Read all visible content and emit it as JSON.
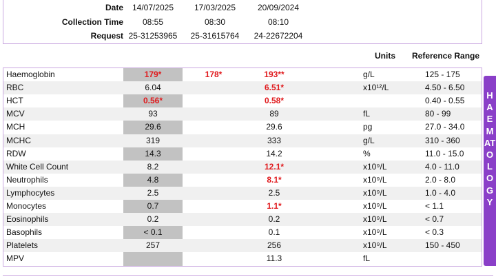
{
  "header": {
    "date_label": "Date",
    "time_label": "Collection Time",
    "request_label": "Request",
    "columns": [
      {
        "date": "14/07/2025",
        "time": "08:55",
        "request": "25-31253965"
      },
      {
        "date": "17/03/2025",
        "time": "08:30",
        "request": "25-31615764"
      },
      {
        "date": "20/09/2024",
        "time": "08:10",
        "request": "24-22672204"
      }
    ]
  },
  "table": {
    "units_header": "Units",
    "ref_header": "Reference Range",
    "rows": [
      {
        "name": "Haemoglobin",
        "v1": "179*",
        "v1_flag": true,
        "v2": "178*",
        "v2_flag": true,
        "v3": "193**",
        "v3_flag": true,
        "unit": "g/L",
        "ref": "125 - 175"
      },
      {
        "name": "RBC",
        "v1": "6.04",
        "v2": "",
        "v3": "6.51*",
        "v3_flag": true,
        "unit": "x10¹²/L",
        "ref": "4.50 - 6.50"
      },
      {
        "name": "HCT",
        "v1": "0.56*",
        "v1_flag": true,
        "v2": "",
        "v3": "0.58*",
        "v3_flag": true,
        "unit": "",
        "ref": "0.40 - 0.55"
      },
      {
        "name": "MCV",
        "v1": "93",
        "v2": "",
        "v3": "89",
        "unit": "fL",
        "ref": "80 - 99"
      },
      {
        "name": "MCH",
        "v1": "29.6",
        "v2": "",
        "v3": "29.6",
        "unit": "pg",
        "ref": "27.0 - 34.0"
      },
      {
        "name": "MCHC",
        "v1": "319",
        "v2": "",
        "v3": "333",
        "unit": "g/L",
        "ref": "310 - 360"
      },
      {
        "name": "RDW",
        "v1": "14.3",
        "v2": "",
        "v3": "14.2",
        "unit": "%",
        "ref": "11.0 - 15.0"
      },
      {
        "name": "White Cell Count",
        "v1": "8.2",
        "v2": "",
        "v3": "12.1*",
        "v3_flag": true,
        "unit": "x10⁹/L",
        "ref": "4.0 - 11.0"
      },
      {
        "name": "Neutrophils",
        "v1": "4.8",
        "v2": "",
        "v3": "8.1*",
        "v3_flag": true,
        "unit": "x10⁹/L",
        "ref": "2.0 - 8.0"
      },
      {
        "name": "Lymphocytes",
        "v1": "2.5",
        "v2": "",
        "v3": "2.5",
        "unit": "x10⁹/L",
        "ref": "1.0 - 4.0"
      },
      {
        "name": "Monocytes",
        "v1": "0.7",
        "v2": "",
        "v3": "1.1*",
        "v3_flag": true,
        "unit": "x10⁹/L",
        "ref": "< 1.1"
      },
      {
        "name": "Eosinophils",
        "v1": "0.2",
        "v2": "",
        "v3": "0.2",
        "unit": "x10⁹/L",
        "ref": "< 0.7"
      },
      {
        "name": "Basophils",
        "v1": "< 0.1",
        "v2": "",
        "v3": "0.1",
        "unit": "x10⁹/L",
        "ref": "< 0.3"
      },
      {
        "name": "Platelets",
        "v1": "257",
        "v2": "",
        "v3": "256",
        "unit": "x10⁹/L",
        "ref": "150 - 450"
      },
      {
        "name": "MPV",
        "v1": "",
        "v2": "",
        "v3": "11.3",
        "unit": "fL",
        "ref": ""
      }
    ]
  },
  "side_tab": {
    "label": "HAEMATOLOGY",
    "color": "#8a3fc8"
  },
  "colors": {
    "flag": "#e0191c",
    "shade": "#c2c2c2",
    "border": "#c9a6e0"
  }
}
